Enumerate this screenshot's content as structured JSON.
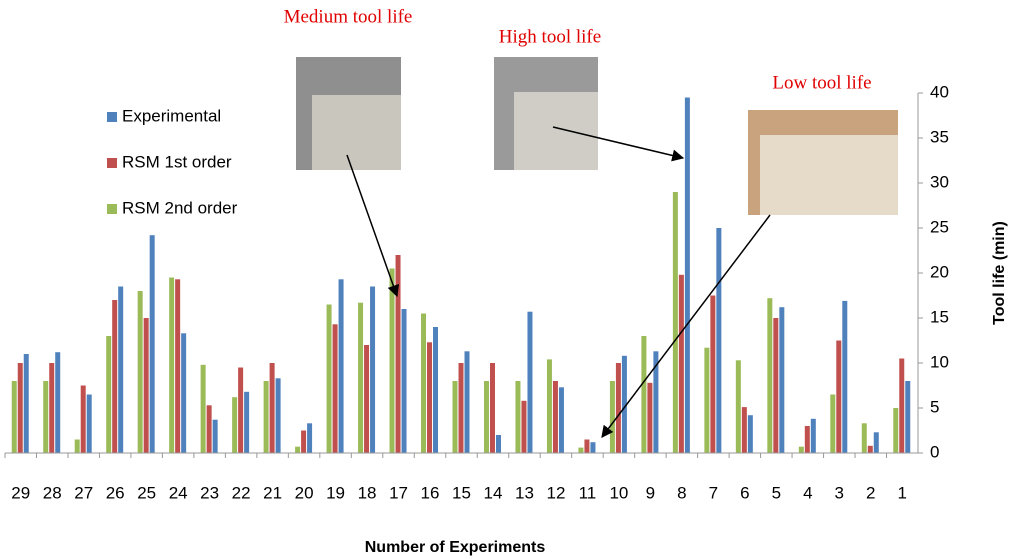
{
  "chart_data": {
    "type": "bar",
    "x_label": "Number of Experiments",
    "y_label": "Tool life (min)",
    "annotations": [
      "Medium tool life",
      "High tool life",
      "Low tool life"
    ],
    "categories": [
      "29",
      "28",
      "27",
      "26",
      "25",
      "24",
      "23",
      "22",
      "21",
      "20",
      "19",
      "18",
      "17",
      "16",
      "15",
      "14",
      "13",
      "12",
      "11",
      "10",
      "9",
      "8",
      "7",
      "6",
      "5",
      "4",
      "3",
      "2",
      "1"
    ],
    "series": [
      {
        "name": "Experimental",
        "color": "#4f81bd",
        "values": [
          11,
          11.2,
          6.5,
          18.5,
          24.2,
          13.3,
          3.7,
          6.8,
          8.3,
          3.3,
          19.3,
          18.5,
          16,
          14,
          11.3,
          2,
          15.7,
          7.3,
          1.2,
          10.8,
          11.3,
          39.5,
          25,
          4.2,
          16.2,
          3.8,
          16.9,
          2.3,
          8
        ]
      },
      {
        "name": "RSM 1st order",
        "color": "#c0504d",
        "values": [
          10,
          10,
          7.5,
          17,
          15,
          19.3,
          5.3,
          9.5,
          10,
          2.5,
          14.3,
          12,
          22,
          12.3,
          10,
          10,
          5.8,
          8,
          1.5,
          10,
          7.8,
          19.8,
          17.5,
          5.1,
          15,
          3,
          12.5,
          0.8,
          10.5
        ]
      },
      {
        "name": "RSM 2nd order",
        "color": "#9bbb59",
        "values": [
          8,
          8,
          1.5,
          13,
          18,
          19.5,
          9.8,
          6.2,
          8,
          0.7,
          16.5,
          16.7,
          20.5,
          15.5,
          8,
          8,
          8,
          10.4,
          0.6,
          8,
          13,
          29,
          11.7,
          10.3,
          17.2,
          0.7,
          6.5,
          3.3,
          5
        ]
      }
    ],
    "ylim": [
      0,
      40
    ],
    "yticks": [
      0,
      5,
      10,
      15,
      20,
      25,
      30,
      35,
      40
    ]
  }
}
